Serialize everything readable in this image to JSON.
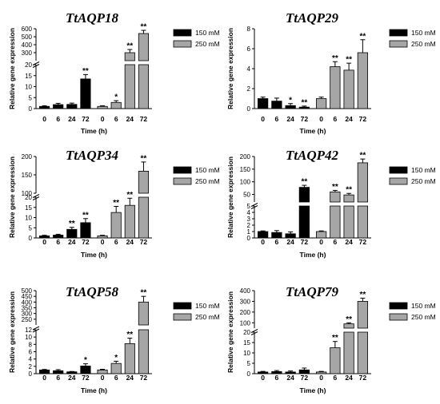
{
  "chart_data": [
    {
      "type": "bar",
      "title": "TtAQP18",
      "xlabel": "Time (h)",
      "ylabel": "Relative gene expression",
      "categories": [
        "0",
        "6",
        "24",
        "72"
      ],
      "legend": "right",
      "series": [
        {
          "name": "150 mM",
          "color": "#000000",
          "values": [
            1,
            1.8,
            1.9,
            13.5
          ],
          "errors": [
            0.3,
            0.6,
            0.6,
            2.0
          ],
          "sig": [
            "",
            "",
            "",
            "**"
          ]
        },
        {
          "name": "250 mM",
          "color": "#a6a6a6",
          "values": [
            1,
            2.8,
            300,
            540
          ],
          "errors": [
            0.3,
            0.8,
            40,
            40
          ],
          "sig": [
            "",
            "*",
            "**",
            "**"
          ]
        }
      ],
      "segments": [
        {
          "range": [
            0,
            20
          ],
          "ticks": [
            "0",
            "5",
            "10",
            "15",
            "20"
          ]
        },
        {
          "range": [
            200,
            600
          ],
          "ticks": [
            "300",
            "400",
            "500",
            "600"
          ]
        }
      ]
    },
    {
      "type": "bar",
      "title": "TtAQP29",
      "xlabel": "Time (h)",
      "ylabel": "Relative gene expression",
      "categories": [
        "0",
        "6",
        "24",
        "72"
      ],
      "legend": "right",
      "series": [
        {
          "name": "150 mM",
          "color": "#000000",
          "values": [
            1.0,
            0.75,
            0.3,
            0.15
          ],
          "errors": [
            0.15,
            0.3,
            0.2,
            0.1
          ],
          "sig": [
            "",
            "",
            "*",
            "**"
          ]
        },
        {
          "name": "250 mM",
          "color": "#a6a6a6",
          "values": [
            1.0,
            4.2,
            3.85,
            5.6
          ],
          "errors": [
            0.15,
            0.5,
            0.7,
            1.3
          ],
          "sig": [
            "",
            "**",
            "**",
            "**"
          ]
        }
      ],
      "segments": [
        {
          "range": [
            0,
            8
          ],
          "ticks": [
            "0",
            "2",
            "4",
            "6",
            "8"
          ]
        }
      ]
    },
    {
      "type": "bar",
      "title": "TtAQP34",
      "xlabel": "Time (h)",
      "ylabel": "Relative gene expression",
      "categories": [
        "0",
        "6",
        "24",
        "72"
      ],
      "legend": "right",
      "series": [
        {
          "name": "150 mM",
          "color": "#000000",
          "values": [
            1,
            1.4,
            4.2,
            7.5
          ],
          "errors": [
            0.3,
            0.4,
            1.0,
            2.0
          ],
          "sig": [
            "",
            "",
            "**",
            "**"
          ]
        },
        {
          "name": "250 mM",
          "color": "#a6a6a6",
          "values": [
            1,
            12.5,
            16,
            160
          ],
          "errors": [
            0.3,
            3.0,
            3.5,
            25
          ],
          "sig": [
            "",
            "**",
            "**",
            "**"
          ]
        }
      ],
      "segments": [
        {
          "range": [
            0,
            20
          ],
          "ticks": [
            "0",
            "5",
            "10",
            "15",
            "20"
          ]
        },
        {
          "range": [
            100,
            200
          ],
          "ticks": [
            "100",
            "150",
            "200"
          ]
        }
      ]
    },
    {
      "type": "bar",
      "title": "TtAQP42",
      "xlabel": "Time (h)",
      "ylabel": "Relative gene expression",
      "categories": [
        "0",
        "6",
        "24",
        "72"
      ],
      "legend": "right",
      "series": [
        {
          "name": "150 mM",
          "color": "#000000",
          "values": [
            1.0,
            0.85,
            0.65,
            78
          ],
          "errors": [
            0.1,
            0.3,
            0.3,
            8
          ],
          "sig": [
            "",
            "",
            "",
            "**"
          ]
        },
        {
          "name": "250 mM",
          "color": "#a6a6a6",
          "values": [
            1.0,
            60,
            48,
            175
          ],
          "errors": [
            0.1,
            6,
            6,
            15
          ],
          "sig": [
            "",
            "**",
            "**",
            "**"
          ]
        }
      ],
      "segments": [
        {
          "range": [
            0,
            5
          ],
          "ticks": [
            "0",
            "1",
            "2",
            "3",
            "4",
            "5"
          ]
        },
        {
          "range": [
            20,
            200
          ],
          "ticks": [
            "50",
            "100",
            "150",
            "200"
          ]
        }
      ]
    },
    {
      "type": "bar",
      "title": "TtAQP58",
      "xlabel": "Time (h)",
      "ylabel": "Relative gene expression",
      "categories": [
        "0",
        "6",
        "24",
        "72"
      ],
      "legend": "right",
      "series": [
        {
          "name": "150 mM",
          "color": "#000000",
          "values": [
            1.0,
            0.8,
            0.5,
            2.1
          ],
          "errors": [
            0.15,
            0.3,
            0.1,
            0.6
          ],
          "sig": [
            "",
            "",
            "",
            "*"
          ]
        },
        {
          "name": "250 mM",
          "color": "#a6a6a6",
          "values": [
            1.0,
            2.8,
            8.2,
            400
          ],
          "errors": [
            0.2,
            0.6,
            1.5,
            50
          ],
          "sig": [
            "",
            "*",
            "**",
            "**"
          ]
        }
      ],
      "segments": [
        {
          "range": [
            0,
            12
          ],
          "ticks": [
            "0",
            "2",
            "4",
            "6",
            "8",
            "10",
            "12"
          ]
        },
        {
          "range": [
            200,
            500
          ],
          "ticks": [
            "250",
            "300",
            "350",
            "400",
            "450",
            "500"
          ]
        }
      ]
    },
    {
      "type": "bar",
      "title": "TtAQP79",
      "xlabel": "Time (h)",
      "ylabel": "Relative gene expression",
      "categories": [
        "0",
        "6",
        "24",
        "72"
      ],
      "legend": "right",
      "series": [
        {
          "name": "150 mM",
          "color": "#000000",
          "values": [
            0.8,
            1.0,
            0.8,
            1.8
          ],
          "errors": [
            0.3,
            0.5,
            0.5,
            0.9
          ],
          "sig": [
            "",
            "",
            "",
            ""
          ]
        },
        {
          "name": "250 mM",
          "color": "#a6a6a6",
          "values": [
            0.8,
            12.5,
            90,
            300
          ],
          "errors": [
            0.3,
            3.0,
            10,
            30
          ],
          "sig": [
            "",
            "**",
            "**",
            "**"
          ]
        }
      ],
      "segments": [
        {
          "range": [
            0,
            20
          ],
          "ticks": [
            "0",
            "5",
            "10",
            "15",
            "20"
          ]
        },
        {
          "range": [
            50,
            400
          ],
          "ticks": [
            "100",
            "200",
            "300",
            "400"
          ]
        }
      ]
    }
  ]
}
